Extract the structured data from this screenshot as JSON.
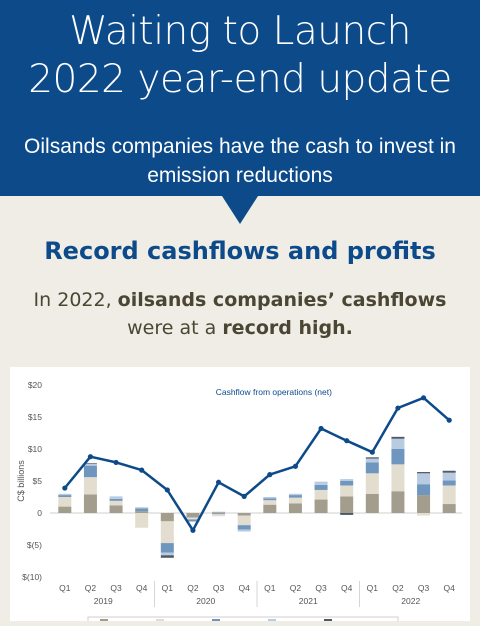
{
  "header": {
    "title_line1": "Waiting to Launch",
    "title_line2": "2022 year-end update",
    "subtitle_line1": "Oilsands companies have the cash to invest in",
    "subtitle_line2": "emission reductions"
  },
  "section": {
    "heading": "Record cashflows and profits",
    "lead_prefix": "In 2022, ",
    "lead_bold1": "oilsands companies’ cashflows",
    "lead_middle": "were at a ",
    "lead_bold2": "record high."
  },
  "chart_data": {
    "type": "bar",
    "ylabel": "C$ billions",
    "ylim": [
      -10,
      20
    ],
    "yticks": [
      20,
      15,
      10,
      5,
      0,
      -5,
      -10
    ],
    "ytick_labels": [
      "$20",
      "$15",
      "$10",
      "$5",
      "0",
      "$(5)",
      "$(10)"
    ],
    "grid": false,
    "quarters": [
      "Q1",
      "Q2",
      "Q3",
      "Q4",
      "Q1",
      "Q2",
      "Q3",
      "Q4",
      "Q1",
      "Q2",
      "Q3",
      "Q4",
      "Q1",
      "Q2",
      "Q3",
      "Q4"
    ],
    "years": [
      "2019",
      "2020",
      "2021",
      "2022"
    ],
    "series": [
      {
        "color": "#a39d8e",
        "values": [
          1.0,
          2.9,
          1.2,
          0.3,
          -1.3,
          -0.7,
          -0.2,
          -0.4,
          1.3,
          1.5,
          2.1,
          2.6,
          3.0,
          3.4,
          2.8,
          1.4
        ]
      },
      {
        "color": "#e2ddcf",
        "values": [
          1.5,
          2.7,
          0.7,
          -2.3,
          -3.4,
          -0.3,
          -0.3,
          -1.5,
          0.7,
          0.9,
          1.5,
          1.7,
          3.2,
          4.2,
          -0.4,
          2.9
        ]
      },
      {
        "color": "#6f96bf",
        "values": [
          0.3,
          1.8,
          0.3,
          0.4,
          -1.5,
          -0.3,
          0.1,
          -0.7,
          0.3,
          0.4,
          0.8,
          0.7,
          1.7,
          2.4,
          1.7,
          0.8
        ]
      },
      {
        "color": "#b8cbe1",
        "values": [
          0.2,
          0.3,
          0.4,
          0.2,
          -0.4,
          -0.1,
          0.1,
          -0.3,
          0.2,
          0.2,
          0.5,
          0.3,
          0.6,
          1.6,
          1.7,
          1.2
        ]
      },
      {
        "color": "#4f5a66",
        "values": [
          0.0,
          0.1,
          0.0,
          0.0,
          -0.4,
          0.0,
          0.0,
          0.0,
          0.0,
          0.0,
          0.0,
          -0.3,
          0.2,
          0.3,
          0.2,
          0.3
        ]
      }
    ],
    "line": {
      "name": "Cashflow from operations (net)",
      "color": "#0c4a8a",
      "values": [
        3.9,
        8.8,
        7.9,
        6.7,
        3.6,
        -2.7,
        4.8,
        2.6,
        6.0,
        7.3,
        13.2,
        11.3,
        9.5,
        16.4,
        18.0,
        14.5
      ]
    }
  }
}
